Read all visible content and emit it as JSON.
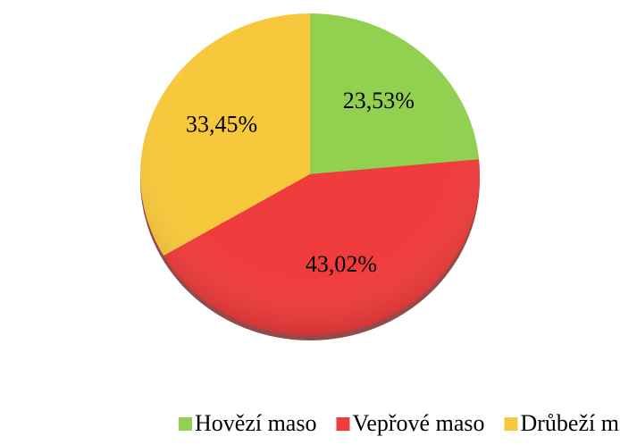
{
  "chart_data": {
    "type": "pie",
    "categories": [
      "Hovězí maso",
      "Vepřové maso",
      "Drůbeží maso"
    ],
    "values": [
      23.53,
      43.02,
      33.45
    ],
    "value_labels": [
      "23,53%",
      "43,02%",
      "33,45%"
    ],
    "colors": [
      "#92d050",
      "#f03c3c",
      "#f8c83c"
    ],
    "legend": "bottom"
  }
}
